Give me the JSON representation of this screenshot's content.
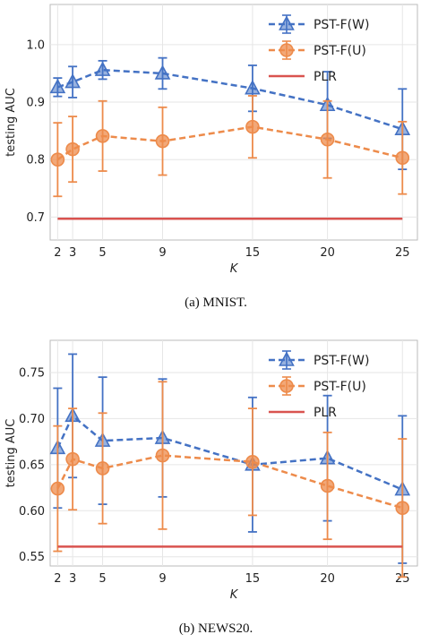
{
  "colors": {
    "pst_w": "#4472C4",
    "pst_u": "#ED8B4B",
    "plr": "#D9534F",
    "grid": "#E6E6E6",
    "frame": "#BBBBBB"
  },
  "chart_data": [
    {
      "type": "line",
      "caption": "(a)  MNIST.",
      "xlabel": "K",
      "ylabel": "testing AUC",
      "x": [
        2,
        3,
        5,
        9,
        15,
        20,
        25
      ],
      "xticks": [
        "2",
        "3",
        "5",
        "9",
        "15",
        "20",
        "25"
      ],
      "xlim": [
        1.5,
        26
      ],
      "ylim": [
        0.66,
        1.07
      ],
      "yticks": [
        0.7,
        0.8,
        0.9,
        1.0
      ],
      "yticklabels": [
        "0.7",
        "0.8",
        "0.9",
        "1.0"
      ],
      "grid": true,
      "legend_position": "top-right",
      "series": [
        {
          "name": "PST-F(W)",
          "style": "dashed",
          "marker": "triangle",
          "color": "#4472C4",
          "values": [
            0.926,
            0.935,
            0.956,
            0.95,
            0.924,
            0.895,
            0.853
          ],
          "err": [
            0.016,
            0.027,
            0.016,
            0.027,
            0.04,
            0.058,
            0.07
          ]
        },
        {
          "name": "PST-F(U)",
          "style": "dashed",
          "marker": "circle",
          "color": "#ED8B4B",
          "values": [
            0.8,
            0.818,
            0.841,
            0.832,
            0.857,
            0.835,
            0.803
          ],
          "err": [
            0.064,
            0.057,
            0.061,
            0.059,
            0.054,
            0.067,
            0.063
          ]
        },
        {
          "name": "PLR",
          "style": "solid",
          "marker": "none",
          "color": "#D9534F",
          "values": [
            0.697,
            0.697,
            0.697,
            0.697,
            0.697,
            0.697,
            0.697
          ]
        }
      ]
    },
    {
      "type": "line",
      "caption": "(b)  NEWS20.",
      "xlabel": "K",
      "ylabel": "testing AUC",
      "x": [
        2,
        3,
        5,
        9,
        15,
        20,
        25
      ],
      "xticks": [
        "2",
        "3",
        "5",
        "9",
        "15",
        "20",
        "25"
      ],
      "xlim": [
        1.5,
        26
      ],
      "ylim": [
        0.54,
        0.785
      ],
      "yticks": [
        0.55,
        0.6,
        0.65,
        0.7,
        0.75
      ],
      "yticklabels": [
        "0.55",
        "0.60",
        "0.65",
        "0.70",
        "0.75"
      ],
      "grid": true,
      "legend_position": "top-right",
      "series": [
        {
          "name": "PST-F(W)",
          "style": "dashed",
          "marker": "triangle",
          "color": "#4472C4",
          "values": [
            0.668,
            0.703,
            0.676,
            0.679,
            0.65,
            0.657,
            0.623
          ],
          "err": [
            0.065,
            0.067,
            0.069,
            0.064,
            0.073,
            0.068,
            0.08
          ]
        },
        {
          "name": "PST-F(U)",
          "style": "dashed",
          "marker": "circle",
          "color": "#ED8B4B",
          "values": [
            0.624,
            0.656,
            0.646,
            0.66,
            0.653,
            0.627,
            0.603
          ],
          "err": [
            0.068,
            0.055,
            0.06,
            0.08,
            0.058,
            0.058,
            0.075
          ]
        },
        {
          "name": "PLR",
          "style": "solid",
          "marker": "none",
          "color": "#D9534F",
          "values": [
            0.561,
            0.561,
            0.561,
            0.561,
            0.561,
            0.561,
            0.561
          ]
        }
      ]
    }
  ]
}
